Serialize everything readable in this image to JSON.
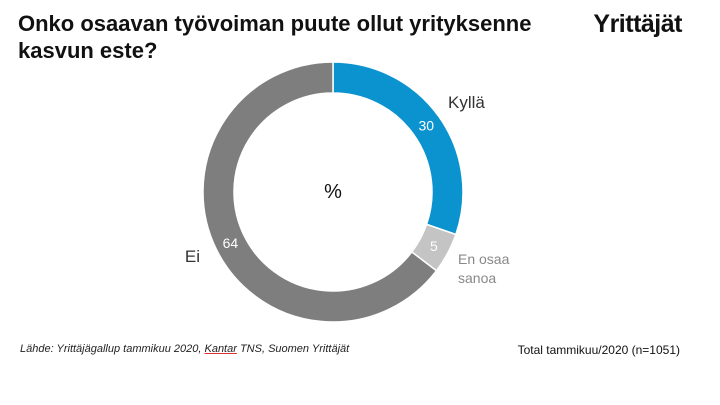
{
  "header": {
    "title": "Onko osaavan työvoiman puute ollut yrityksenne kasvun este?",
    "logo": "Yrittäjät"
  },
  "footer": {
    "source_prefix": "Lähde: Yrittäjägallup tammikuu 2020, ",
    "source_underlined": "Kantar",
    "source_suffix": " TNS, Suomen Yrittäjät",
    "total": "Total tammikuu/2020 (n=1051)"
  },
  "chart_data": {
    "type": "pie",
    "center_label": "%",
    "categories": [
      "Kyllä",
      "En osaa sanoa",
      "Ei"
    ],
    "values": [
      30,
      5,
      64
    ],
    "colors": [
      "#0a93cf",
      "#c4c4c4",
      "#7e7e7e"
    ],
    "label_colors": [
      "#333333",
      "#888888",
      "#333333"
    ]
  }
}
